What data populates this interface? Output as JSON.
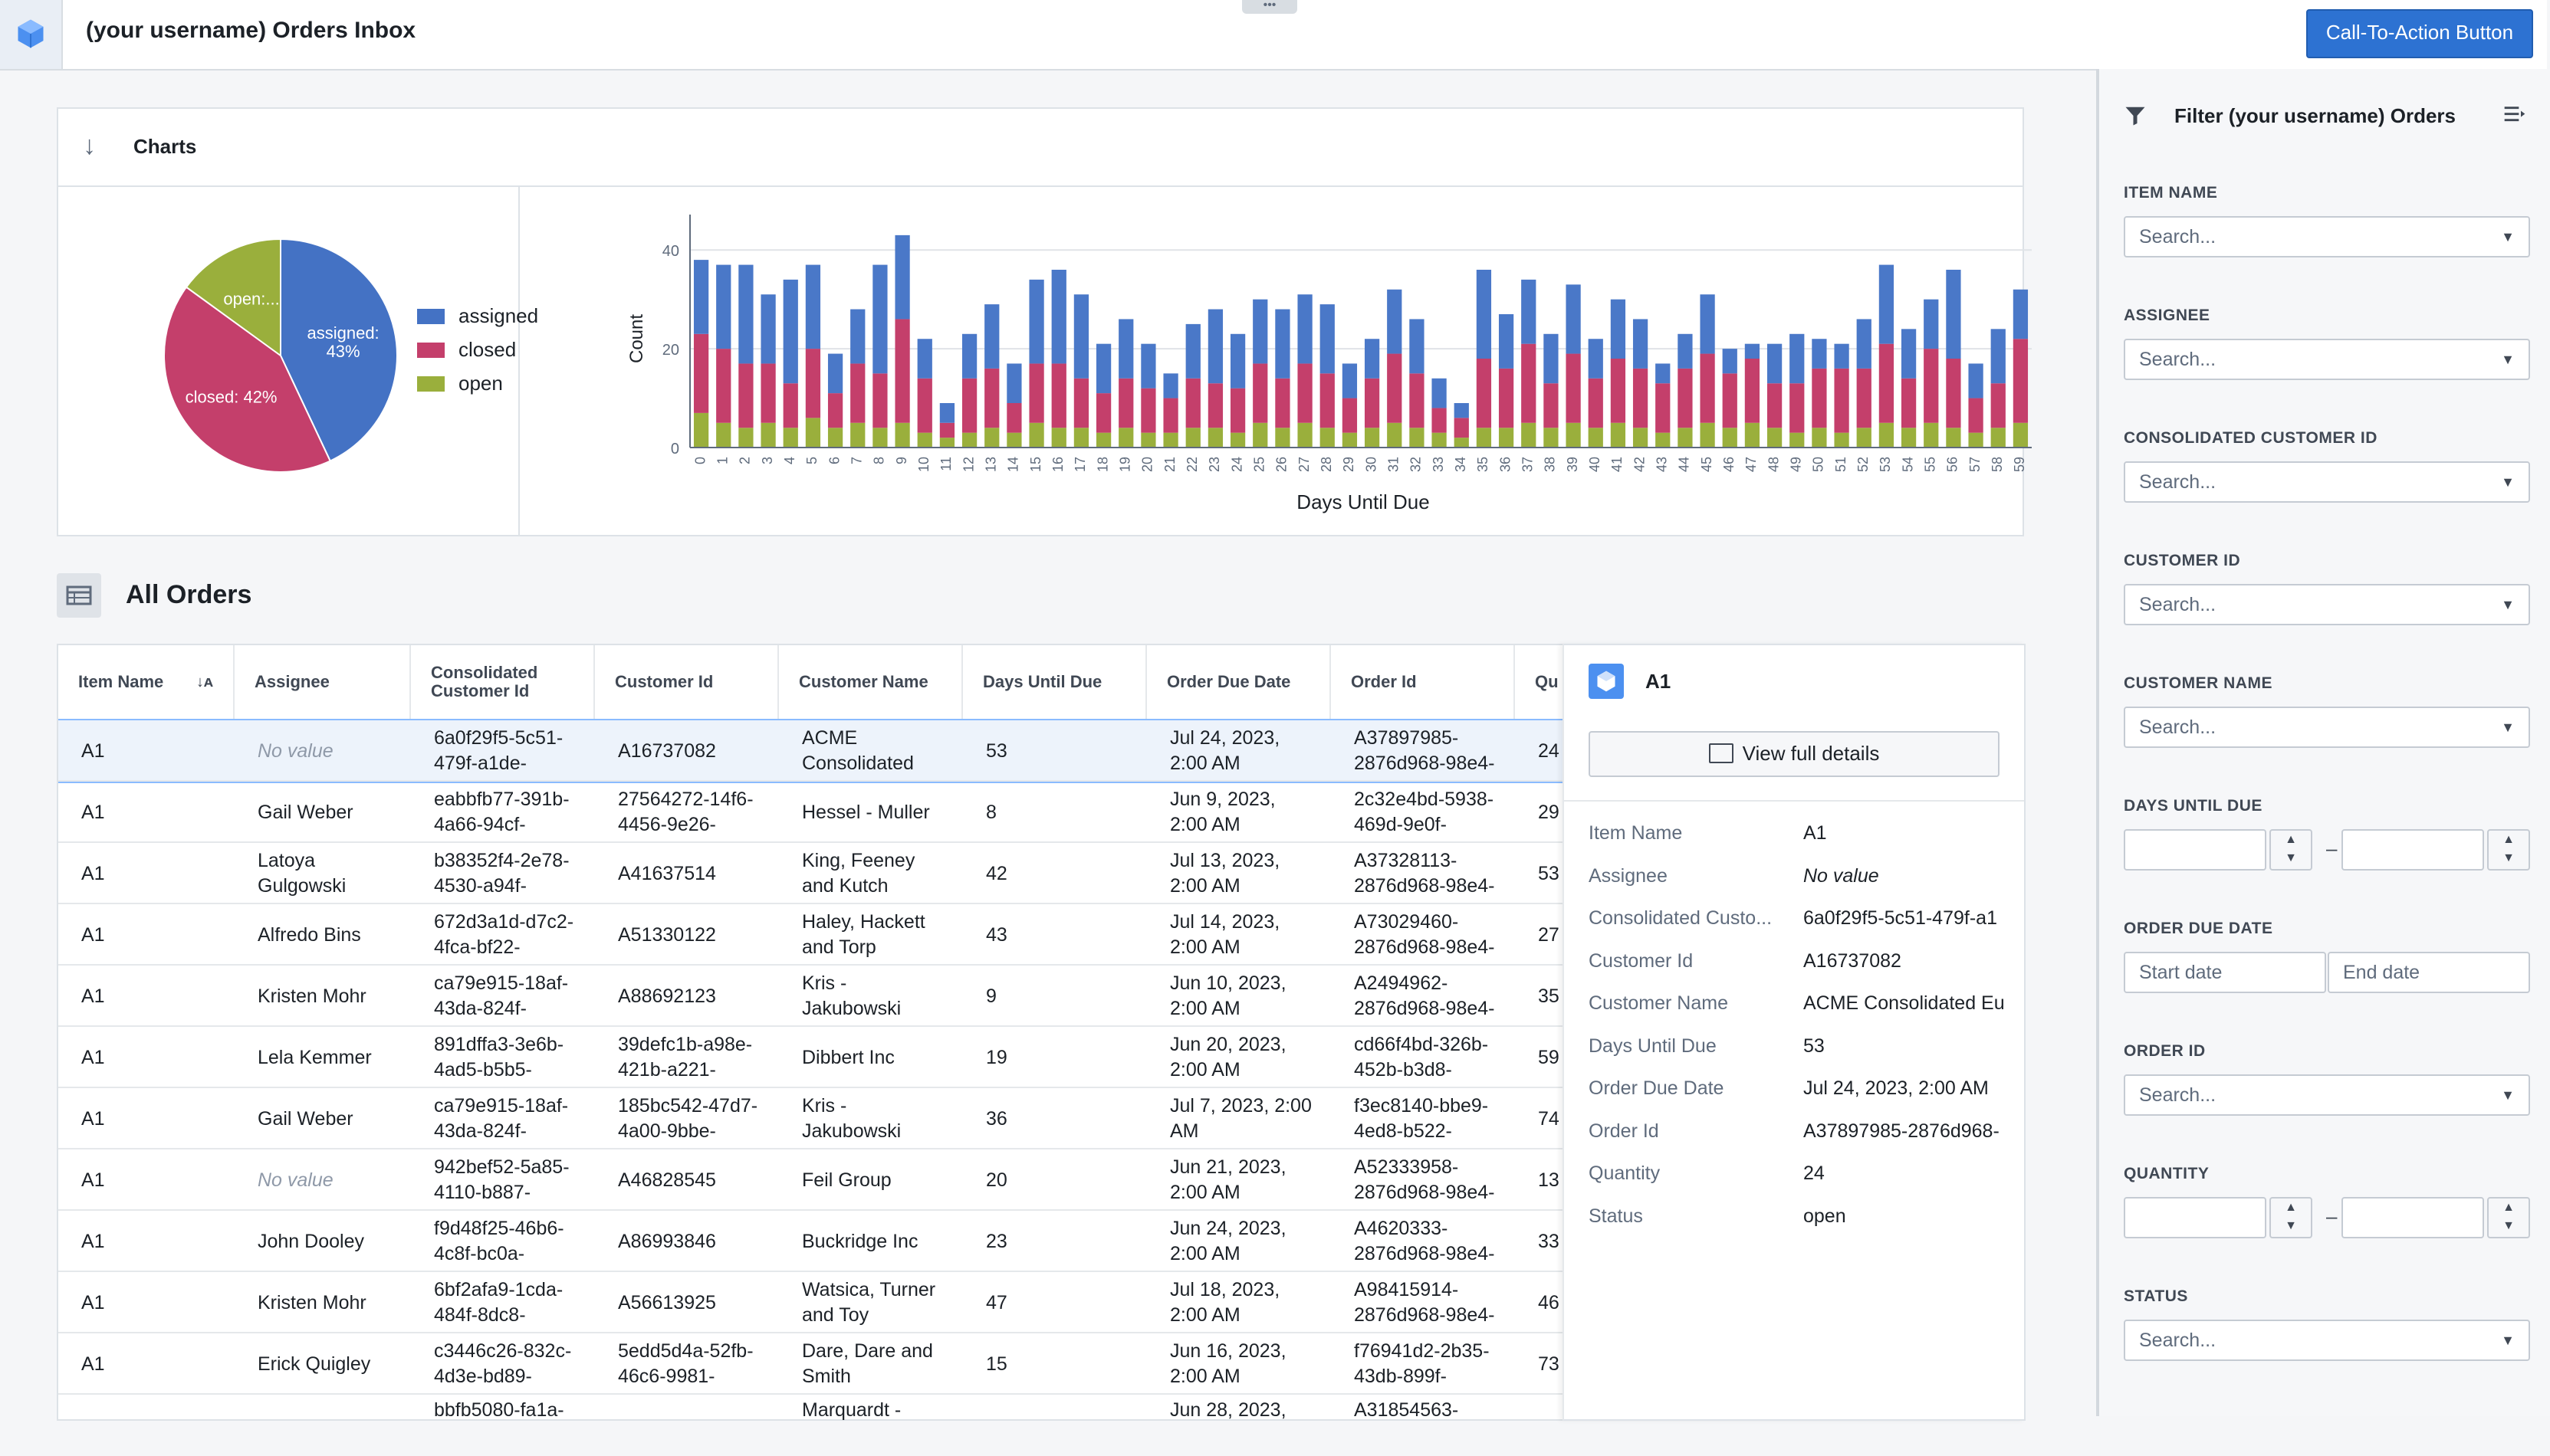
{
  "header": {
    "title": "(your username) Orders Inbox",
    "drag_handle": "•••",
    "cta_label": "Call-To-Action Button"
  },
  "charts_section": {
    "title": "Charts"
  },
  "chart_data": [
    {
      "type": "pie",
      "slices": [
        {
          "name": "assigned",
          "value": 43,
          "label": "assigned:\n43%",
          "color": "#4472c4"
        },
        {
          "name": "closed",
          "value": 42,
          "label": "closed: 42%",
          "color": "#c43f6b"
        },
        {
          "name": "open",
          "value": 15,
          "label": "open:...",
          "color": "#9aaf3c"
        }
      ],
      "legend": [
        "assigned",
        "closed",
        "open"
      ],
      "legend_position": "right"
    },
    {
      "type": "bar",
      "stacked": true,
      "xlabel": "Days Until Due",
      "ylabel": "Count",
      "ylim": [
        0,
        45
      ],
      "yticks": [
        0,
        20,
        40
      ],
      "grid": true,
      "categories": [
        "0",
        "1",
        "2",
        "3",
        "4",
        "5",
        "6",
        "7",
        "8",
        "9",
        "10",
        "11",
        "12",
        "13",
        "14",
        "15",
        "16",
        "17",
        "18",
        "19",
        "20",
        "21",
        "22",
        "23",
        "24",
        "25",
        "26",
        "27",
        "28",
        "29",
        "30",
        "31",
        "32",
        "33",
        "34",
        "35",
        "36",
        "37",
        "38",
        "39",
        "40",
        "41",
        "42",
        "43",
        "44",
        "45",
        "46",
        "47",
        "48",
        "49",
        "50",
        "51",
        "52",
        "53",
        "54",
        "55",
        "56",
        "57",
        "58",
        "59"
      ],
      "series": [
        {
          "name": "open",
          "color": "#9aaf3c",
          "values": [
            7,
            5,
            4,
            5,
            4,
            6,
            4,
            5,
            4,
            5,
            3,
            2,
            3,
            4,
            3,
            5,
            4,
            4,
            3,
            4,
            3,
            3,
            4,
            4,
            3,
            5,
            4,
            5,
            4,
            3,
            4,
            5,
            4,
            3,
            2,
            4,
            4,
            5,
            4,
            5,
            4,
            5,
            4,
            3,
            4,
            5,
            4,
            5,
            4,
            3,
            4,
            3,
            4,
            5,
            4,
            5,
            4,
            3,
            4,
            5
          ]
        },
        {
          "name": "closed",
          "color": "#c43f6b",
          "values": [
            16,
            15,
            13,
            12,
            9,
            14,
            7,
            12,
            11,
            21,
            11,
            3,
            11,
            12,
            6,
            12,
            13,
            10,
            8,
            10,
            9,
            7,
            10,
            9,
            9,
            12,
            10,
            12,
            11,
            7,
            10,
            14,
            11,
            5,
            4,
            14,
            12,
            16,
            9,
            14,
            10,
            13,
            12,
            10,
            12,
            14,
            11,
            13,
            9,
            10,
            12,
            13,
            12,
            16,
            10,
            15,
            14,
            7,
            9,
            17
          ]
        },
        {
          "name": "assigned",
          "color": "#4a78c8",
          "values": [
            15,
            17,
            20,
            14,
            21,
            17,
            8,
            11,
            22,
            17,
            8,
            4,
            9,
            13,
            8,
            17,
            19,
            17,
            10,
            12,
            9,
            5,
            11,
            15,
            11,
            13,
            14,
            14,
            14,
            7,
            8,
            13,
            11,
            6,
            3,
            18,
            11,
            13,
            10,
            14,
            8,
            12,
            10,
            4,
            7,
            12,
            5,
            3,
            8,
            10,
            6,
            5,
            10,
            16,
            10,
            10,
            18,
            7,
            11,
            10
          ]
        }
      ]
    }
  ],
  "orders": {
    "title": "All Orders",
    "columns": [
      "Item Name",
      "Assignee",
      "Consolidated\nCustomer Id",
      "Customer Id",
      "Customer Name",
      "Days Until Due",
      "Order Due Date",
      "Order Id",
      "Qu"
    ],
    "no_value": "No value",
    "rows": [
      [
        "A1",
        "",
        "6a0f29f5-5c51-\n479f-a1de-",
        "A16737082",
        "ACME\nConsolidated",
        "53",
        "Jul 24, 2023,\n2:00 AM",
        "A37897985-\n2876d968-98e4-",
        "24"
      ],
      [
        "A1",
        "Gail Weber",
        "eabbfb77-391b-\n4a66-94cf-",
        "27564272-14f6-\n4456-9e26-",
        "Hessel - Muller",
        "8",
        "Jun 9, 2023,\n2:00 AM",
        "2c32e4bd-5938-\n469d-9e0f-",
        "29"
      ],
      [
        "A1",
        "Latoya\nGulgowski",
        "b38352f4-2e78-\n4530-a94f-",
        "A41637514",
        "King, Feeney\nand Kutch",
        "42",
        "Jul 13, 2023,\n2:00 AM",
        "A37328113-\n2876d968-98e4-",
        "53"
      ],
      [
        "A1",
        "Alfredo Bins",
        "672d3a1d-d7c2-\n4fca-bf22-",
        "A51330122",
        "Haley, Hackett\nand Torp",
        "43",
        "Jul 14, 2023,\n2:00 AM",
        "A73029460-\n2876d968-98e4-",
        "27"
      ],
      [
        "A1",
        "Kristen Mohr",
        "ca79e915-18af-\n43da-824f-",
        "A88692123",
        "Kris -\nJakubowski",
        "9",
        "Jun 10, 2023,\n2:00 AM",
        "A2494962-\n2876d968-98e4-",
        "35"
      ],
      [
        "A1",
        "Lela Kemmer",
        "891dffa3-3e6b-\n4ad5-b5b5-",
        "39defc1b-a98e-\n421b-a221-",
        "Dibbert Inc",
        "19",
        "Jun 20, 2023,\n2:00 AM",
        "cd66f4bd-326b-\n452b-b3d8-",
        "59"
      ],
      [
        "A1",
        "Gail Weber",
        "ca79e915-18af-\n43da-824f-",
        "185bc542-47d7-\n4a00-9bbe-",
        "Kris -\nJakubowski",
        "36",
        "Jul 7, 2023, 2:00\nAM",
        "f3ec8140-bbe9-\n4ed8-b522-",
        "74"
      ],
      [
        "A1",
        "",
        "942bef52-5a85-\n4110-b887-",
        "A46828545",
        "Feil Group",
        "20",
        "Jun 21, 2023,\n2:00 AM",
        "A52333958-\n2876d968-98e4-",
        "13"
      ],
      [
        "A1",
        "John Dooley",
        "f9d48f25-46b6-\n4c8f-bc0a-",
        "A86993846",
        "Buckridge Inc",
        "23",
        "Jun 24, 2023,\n2:00 AM",
        "A4620333-\n2876d968-98e4-",
        "33"
      ],
      [
        "A1",
        "Kristen Mohr",
        "6bf2afa9-1cda-\n484f-8dc8-",
        "A56613925",
        "Watsica, Turner\nand Toy",
        "47",
        "Jul 18, 2023,\n2:00 AM",
        "A98415914-\n2876d968-98e4-",
        "46"
      ],
      [
        "A1",
        "Erick Quigley",
        "c3446c26-832c-\n4d3e-bd89-",
        "5edd5d4a-52fb-\n46c6-9981-",
        "Dare, Dare and\nSmith",
        "15",
        "Jun 16, 2023,\n2:00 AM",
        "f76941d2-2b35-\n43db-899f-",
        "73"
      ],
      [
        "",
        "",
        "bbfb5080-fa1a-",
        "",
        "Marquardt -",
        "",
        "Jun 28, 2023,",
        "A31854563-",
        ""
      ]
    ]
  },
  "detail": {
    "title": "A1",
    "view_full_label": "View full details",
    "fields": [
      {
        "label": "Item Name",
        "value": "A1"
      },
      {
        "label": "Assignee",
        "value": "No value"
      },
      {
        "label": "Consolidated Custo...",
        "value": "6a0f29f5-5c51-479f-a1"
      },
      {
        "label": "Customer Id",
        "value": "A16737082"
      },
      {
        "label": "Customer Name",
        "value": "ACME Consolidated Eu"
      },
      {
        "label": "Days Until Due",
        "value": "53"
      },
      {
        "label": "Order Due Date",
        "value": "Jul 24, 2023, 2:00 AM"
      },
      {
        "label": "Order Id",
        "value": "A37897985-2876d968-"
      },
      {
        "label": "Quantity",
        "value": "24"
      },
      {
        "label": "Status",
        "value": "open"
      }
    ]
  },
  "filter": {
    "title": "Filter (your username) Orders",
    "item_name": {
      "label": "ITEM NAME",
      "placeholder": "Search..."
    },
    "assignee": {
      "label": "ASSIGNEE",
      "placeholder": "Search..."
    },
    "consolidated_customer_id": {
      "label": "CONSOLIDATED CUSTOMER ID",
      "placeholder": "Search..."
    },
    "customer_id": {
      "label": "CUSTOMER ID",
      "placeholder": "Search..."
    },
    "customer_name": {
      "label": "CUSTOMER NAME",
      "placeholder": "Search..."
    },
    "days_until_due": {
      "label": "DAYS UNTIL DUE"
    },
    "order_due_date": {
      "label": "ORDER DUE DATE",
      "start_placeholder": "Start date",
      "end_placeholder": "End date"
    },
    "order_id": {
      "label": "ORDER ID",
      "placeholder": "Search..."
    },
    "quantity": {
      "label": "QUANTITY"
    },
    "status": {
      "label": "STATUS",
      "placeholder": "Search..."
    },
    "range_dash": "–"
  }
}
